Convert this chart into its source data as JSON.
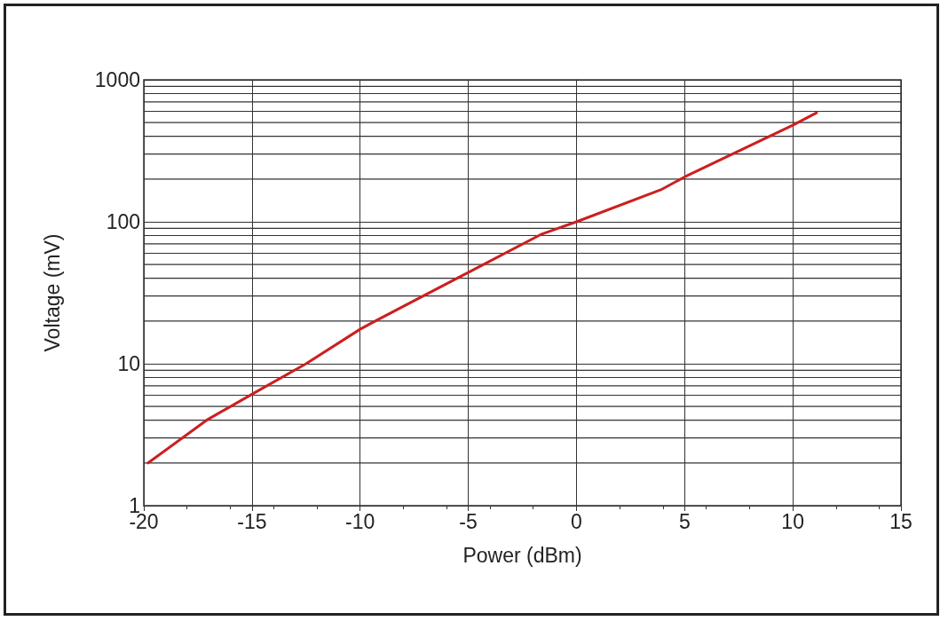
{
  "chart_data": {
    "type": "line",
    "xlabel": "Power (dBm)",
    "ylabel": "Voltage (mV)",
    "x": [
      -19.8,
      -17.1,
      -15,
      -12.5,
      -10,
      -9.3,
      -5,
      -1.6,
      0,
      3.9,
      5,
      10,
      11.1
    ],
    "series": [
      {
        "color": "#cc1f1f",
        "values": [
          2,
          4,
          6.1,
          10,
          17.5,
          20,
          44,
          82,
          100,
          168,
          207,
          479,
          586
        ]
      }
    ],
    "xlim": [
      -20,
      15
    ],
    "xticks": [
      -20,
      -15,
      -10,
      -5,
      0,
      5,
      10,
      15
    ],
    "ylim": [
      1,
      1000
    ],
    "yticks": [
      1,
      10,
      100,
      1000
    ],
    "log": "y",
    "grid": true,
    "marker": "none",
    "line_style": "solid"
  }
}
